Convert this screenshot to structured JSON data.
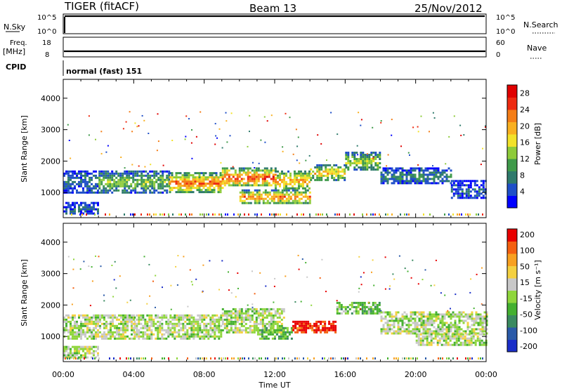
{
  "header": {
    "station": "TIGER (fitACF)",
    "beam": "Beam 13",
    "date": "25/Nov/2012"
  },
  "strips": {
    "nsky": {
      "label": "N.Sky",
      "ticks_left": [
        "10^5",
        "10^0"
      ],
      "right_label": "N.Search",
      "ticks_right": [
        "10^5",
        "10^0"
      ]
    },
    "freq": {
      "label_line1": "Freq.",
      "label_line2": "[MHz]",
      "ticks_left": [
        "18",
        "8"
      ],
      "right_label": "Nave",
      "ticks_right": [
        "60",
        "0"
      ]
    },
    "cpid": {
      "label": "CPID",
      "value": "normal (fast) 151"
    }
  },
  "chart_data": [
    {
      "type": "heatmap",
      "title": "",
      "parameter": "power",
      "xlabel": "",
      "ylabel": "Slant Range [km]",
      "yticks": [
        "1000",
        "2000",
        "3000",
        "4000"
      ],
      "ylim": [
        200,
        4600
      ],
      "xlim": [
        0,
        24
      ],
      "colorbar": {
        "label": "Power [dB]",
        "ticks": [
          "4",
          "8",
          "12",
          "16",
          "20",
          "24",
          "28"
        ],
        "colors": [
          "#0000ff",
          "#1f4fc8",
          "#2f7a6c",
          "#3f9a4a",
          "#8ecb3a",
          "#f2e22a",
          "#f9b020",
          "#f47d16",
          "#ee2a10",
          "#e00000"
        ]
      },
      "bands": [
        {
          "t0": 0.0,
          "t1": 2.0,
          "r0": 1000,
          "r1": 1700,
          "level": 0.25
        },
        {
          "t0": 2.0,
          "t1": 6.0,
          "r0": 1000,
          "r1": 1700,
          "level": 0.45
        },
        {
          "t0": 6.0,
          "t1": 9.0,
          "r0": 1000,
          "r1": 1650,
          "level": 0.8
        },
        {
          "t0": 9.0,
          "t1": 12.0,
          "r0": 1200,
          "r1": 1800,
          "level": 0.85
        },
        {
          "t0": 12.0,
          "t1": 14.0,
          "r0": 1100,
          "r1": 1700,
          "level": 0.7
        },
        {
          "t0": 14.0,
          "t1": 16.0,
          "r0": 1400,
          "r1": 1900,
          "level": 0.65
        },
        {
          "t0": 16.0,
          "t1": 18.0,
          "r0": 1700,
          "r1": 2300,
          "level": 0.5
        },
        {
          "t0": 18.0,
          "t1": 22.0,
          "r0": 1300,
          "r1": 1800,
          "level": 0.3
        },
        {
          "t0": 22.0,
          "t1": 24.0,
          "r0": 800,
          "r1": 1400,
          "level": 0.2
        },
        {
          "t0": 10.0,
          "t1": 14.0,
          "r0": 650,
          "r1": 1100,
          "level": 0.75
        },
        {
          "t0": 0.0,
          "t1": 2.0,
          "r0": 300,
          "r1": 700,
          "level": 0.2
        }
      ]
    },
    {
      "type": "heatmap",
      "title": "",
      "parameter": "velocity",
      "xlabel": "Time UT",
      "ylabel": "Slant Range [km]",
      "xticks": [
        "00:00",
        "04:00",
        "08:00",
        "12:00",
        "16:00",
        "20:00",
        "00:00"
      ],
      "yticks": [
        "1000",
        "2000",
        "3000",
        "4000"
      ],
      "ylim": [
        200,
        4600
      ],
      "xlim": [
        0,
        24
      ],
      "colorbar": {
        "label": "Velocity [m s⁻¹]",
        "ticks": [
          "200",
          "100",
          "50",
          "15",
          "-15",
          "-50",
          "-100",
          "-200"
        ],
        "colors": [
          "#1a2ec8",
          "#2a5aa8",
          "#3a8a60",
          "#44b030",
          "#8fd63c",
          "#c8c8c8",
          "#f4d040",
          "#f8a020",
          "#f46010",
          "#e80000"
        ]
      },
      "bands": [
        {
          "t0": 0.0,
          "t1": 4.0,
          "r0": 900,
          "r1": 1700,
          "level": 0.5
        },
        {
          "t0": 4.0,
          "t1": 9.0,
          "r0": 900,
          "r1": 1700,
          "level": 0.5
        },
        {
          "t0": 9.0,
          "t1": 12.5,
          "r0": 1100,
          "r1": 1900,
          "level": 0.5
        },
        {
          "t0": 11.0,
          "t1": 13.0,
          "r0": 900,
          "r1": 1300,
          "level": 0.35
        },
        {
          "t0": 13.0,
          "t1": 15.5,
          "r0": 1100,
          "r1": 1500,
          "level": 0.92
        },
        {
          "t0": 15.5,
          "t1": 18.0,
          "r0": 1700,
          "r1": 2100,
          "level": 0.4
        },
        {
          "t0": 18.0,
          "t1": 24.0,
          "r0": 1100,
          "r1": 1800,
          "level": 0.5
        },
        {
          "t0": 20.0,
          "t1": 24.0,
          "r0": 700,
          "r1": 1100,
          "level": 0.5
        },
        {
          "t0": 0.0,
          "t1": 2.0,
          "r0": 350,
          "r1": 700,
          "level": 0.5
        }
      ]
    }
  ]
}
